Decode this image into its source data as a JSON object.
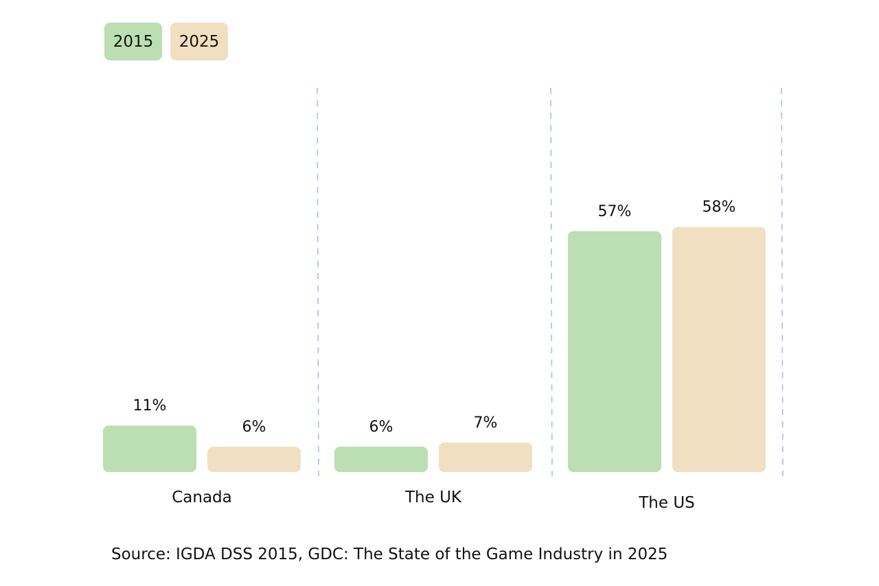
{
  "legend": [
    {
      "label": "2015",
      "color": "#bbdeb2"
    },
    {
      "label": "2025",
      "color": "#f1dfc2"
    }
  ],
  "chart_data": {
    "type": "bar",
    "title": "",
    "xlabel": "",
    "ylabel": "",
    "categories": [
      "Canada",
      "The UK",
      "The US"
    ],
    "series": [
      {
        "name": "2015",
        "color": "#bbdeb2",
        "values": [
          11,
          6,
          57
        ],
        "labels": [
          "11%",
          "6%",
          "57%"
        ]
      },
      {
        "name": "2025",
        "color": "#f1dfc2",
        "values": [
          6,
          7,
          58
        ],
        "labels": [
          "6%",
          "7%",
          "58%"
        ]
      }
    ],
    "ylim": [
      0,
      90
    ],
    "grid": false,
    "separator_color": "#9dbbea",
    "legend_position": "top-left"
  },
  "source": "Source: IGDA DSS 2015, GDC: The State of the Game Industry in 2025"
}
